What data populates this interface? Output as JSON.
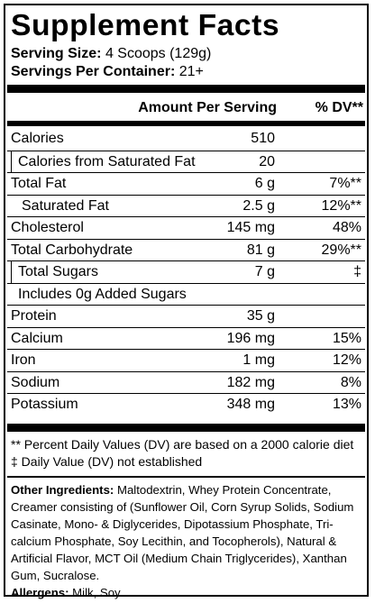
{
  "title": "Supplement Facts",
  "serving": {
    "size_label": "Serving Size:",
    "size_value": "4 Scoops (129g)",
    "per_container_label": "Servings Per Container:",
    "per_container_value": "21+"
  },
  "table": {
    "amount_header": "Amount Per Serving",
    "dv_header": "% DV**",
    "rows": [
      {
        "name": "Calories",
        "amount": "510",
        "dv": ""
      },
      {
        "name": "Calories from Saturated Fat",
        "amount": "20",
        "dv": ""
      },
      {
        "name": "Total Fat",
        "amount": "6 g",
        "dv": "7%**"
      },
      {
        "name": "Saturated Fat",
        "amount": "2.5 g",
        "dv": "12%**"
      },
      {
        "name": "Cholesterol",
        "amount": "145 mg",
        "dv": "48%"
      },
      {
        "name": "Total Carbohydrate",
        "amount": "81 g",
        "dv": "29%**"
      },
      {
        "name": "Total Sugars",
        "amount": "7 g",
        "dv": "‡"
      },
      {
        "name": "Includes 0g Added Sugars",
        "amount": "",
        "dv": ""
      },
      {
        "name": "Protein",
        "amount": "35 g",
        "dv": ""
      },
      {
        "name": "Calcium",
        "amount": "196 mg",
        "dv": "15%"
      },
      {
        "name": "Iron",
        "amount": "1 mg",
        "dv": "12%"
      },
      {
        "name": "Sodium",
        "amount": "182 mg",
        "dv": "8%"
      },
      {
        "name": "Potassium",
        "amount": "348 mg",
        "dv": "13%"
      }
    ]
  },
  "footnotes": {
    "percent_dv": "** Percent Daily Values (DV) are based on a 2000 calorie diet",
    "not_established": "‡ Daily Value (DV) not established"
  },
  "ingredients": {
    "label": "Other Ingredients:",
    "text": " Maltodextrin, Whey Protein Concentrate, Creamer consisting of (Sunflower Oil, Corn Syrup Solids, Sodium Casinate, Mono- & Diglycerides, Dipotassium Phosphate, Tri-calcium Phosphate, Soy Lecithin, and Tocopherols), Natural & Artificial Flavor, MCT Oil (Medium Chain Triglycerides), Xanthan Gum, Sucralose.",
    "allergens_label": "Allergens:",
    "allergens_text": " Milk, Soy."
  }
}
